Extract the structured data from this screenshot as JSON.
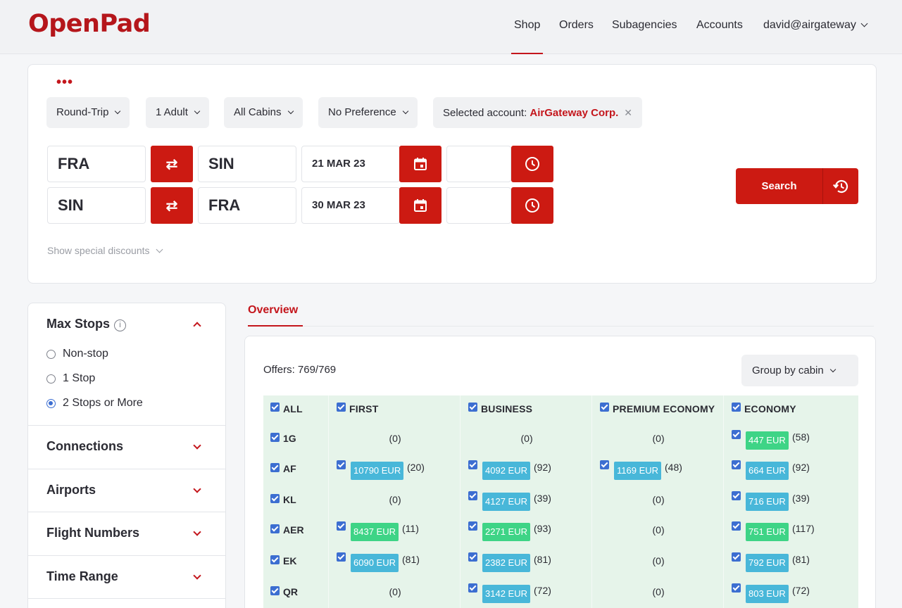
{
  "header": {
    "logo": "OpenPad",
    "nav": [
      {
        "label": "Shop",
        "active": true
      },
      {
        "label": "Orders"
      },
      {
        "label": "Subagencies"
      },
      {
        "label": "Accounts"
      }
    ],
    "user": "david@airgateway"
  },
  "search": {
    "dots": "•••",
    "trip_type": "Round-Trip",
    "passengers": "1 Adult",
    "cabin": "All Cabins",
    "preference": "No Preference",
    "account_label": "Selected account: ",
    "account_name": "AirGateway Corp.",
    "account_clear": "✕",
    "legs": [
      {
        "from": "FRA",
        "to": "SIN",
        "date": "21 MAR 23",
        "time": ""
      },
      {
        "from": "SIN",
        "to": "FRA",
        "date": "30 MAR 23",
        "time": ""
      }
    ],
    "swap_glyph": "⇄",
    "show_discounts": "Show special discounts",
    "search_button": "Search"
  },
  "filters": {
    "max_stops": {
      "title": "Max Stops",
      "info": "i",
      "options": [
        {
          "label": "Non-stop",
          "selected": false
        },
        {
          "label": "1 Stop",
          "selected": false
        },
        {
          "label": "2 Stops or More",
          "selected": true
        }
      ]
    },
    "sections": [
      "Connections",
      "Airports",
      "Flight Numbers",
      "Time Range"
    ]
  },
  "overview": {
    "tab": "Overview",
    "offers": "Offers: 769/769",
    "group_by": "Group by cabin",
    "columns": [
      "ALL",
      "FIRST",
      "BUSINESS",
      "PREMIUM ECONOMY",
      "ECONOMY"
    ],
    "rows": [
      {
        "carrier": "1G",
        "cells": [
          {
            "price": "",
            "count": "(0)"
          },
          {
            "price": "",
            "count": "(0)"
          },
          {
            "price": "",
            "count": "(0)"
          },
          {
            "price": "447 EUR",
            "count": "(58)",
            "color": "green"
          }
        ]
      },
      {
        "carrier": "AF",
        "cells": [
          {
            "price": "10790 EUR",
            "count": "(20)",
            "color": "blue"
          },
          {
            "price": "4092 EUR",
            "count": "(92)",
            "color": "blue"
          },
          {
            "price": "1169 EUR",
            "count": "(48)",
            "color": "blue"
          },
          {
            "price": "664 EUR",
            "count": "(92)",
            "color": "blue"
          }
        ]
      },
      {
        "carrier": "KL",
        "cells": [
          {
            "price": "",
            "count": "(0)"
          },
          {
            "price": "4127 EUR",
            "count": "(39)",
            "color": "blue"
          },
          {
            "price": "",
            "count": "(0)"
          },
          {
            "price": "716 EUR",
            "count": "(39)",
            "color": "blue"
          }
        ]
      },
      {
        "carrier": "AER",
        "cells": [
          {
            "price": "8437 EUR",
            "count": "(11)",
            "color": "green"
          },
          {
            "price": "2271 EUR",
            "count": "(93)",
            "color": "green"
          },
          {
            "price": "",
            "count": "(0)"
          },
          {
            "price": "751 EUR",
            "count": "(117)",
            "color": "green"
          }
        ]
      },
      {
        "carrier": "EK",
        "cells": [
          {
            "price": "6090 EUR",
            "count": "(81)",
            "color": "blue"
          },
          {
            "price": "2382 EUR",
            "count": "(81)",
            "color": "blue"
          },
          {
            "price": "",
            "count": "(0)"
          },
          {
            "price": "792 EUR",
            "count": "(81)",
            "color": "blue"
          }
        ]
      },
      {
        "carrier": "QR",
        "cells": [
          {
            "price": "",
            "count": "(0)"
          },
          {
            "price": "3142 EUR",
            "count": "(72)",
            "color": "blue"
          },
          {
            "price": "",
            "count": "(0)"
          },
          {
            "price": "803 EUR",
            "count": "(72)",
            "color": "blue"
          }
        ]
      }
    ]
  },
  "colors": {
    "brand": "#cc1a12",
    "checkbox": "#3c6ed1",
    "price_blue": "#48b7d9",
    "price_green": "#3ed486",
    "grid_bg": "#e6f4ea"
  }
}
